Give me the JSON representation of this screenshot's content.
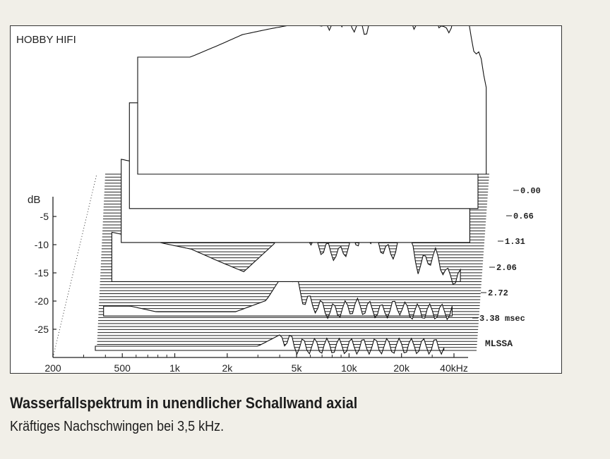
{
  "chart_data": {
    "type": "waterfall",
    "title": "HOBBY HIFI",
    "analyzer_label": "MLSSA",
    "ylabel": "dB",
    "y_ticks": [
      "-5",
      "-10",
      "-15",
      "-20",
      "-25"
    ],
    "ylim": [
      -28,
      3
    ],
    "x_scale": "log",
    "xlim": [
      200,
      40000
    ],
    "x_ticks": [
      {
        "label": "200",
        "value": 200
      },
      {
        "label": "500",
        "value": 500
      },
      {
        "label": "1k",
        "value": 1000
      },
      {
        "label": "2k",
        "value": 2000
      },
      {
        "label": "5k",
        "value": 5000
      },
      {
        "label": "10k",
        "value": 10000
      },
      {
        "label": "20k",
        "value": 20000
      },
      {
        "label": "40kHz",
        "value": 40000
      }
    ],
    "time_labels": [
      "0.00",
      "0.66",
      "1.31",
      "2.06",
      "2.72",
      "3.38 msec"
    ],
    "time_values_ms": [
      0.0,
      0.66,
      1.31,
      2.06,
      2.72,
      3.38
    ],
    "series": [
      {
        "time_ms": 0.0,
        "x": [
          350,
          500,
          700,
          1000,
          1400,
          2000,
          3000,
          4000,
          5000,
          7000,
          10000,
          14000,
          17000,
          20000,
          25000,
          30000,
          35000
        ],
        "y": [
          -8,
          -8,
          -8,
          -6,
          -4,
          -3,
          -2,
          -2.5,
          -1,
          -3,
          1,
          -2,
          2,
          -4,
          1,
          -6,
          -12
        ]
      },
      {
        "time_ms": 0.66,
        "x": [
          350,
          500,
          700,
          1000,
          1400,
          2000,
          3000,
          4000,
          5000,
          7000,
          10000,
          14000,
          17000,
          20000,
          25000,
          30000,
          35000
        ],
        "y": [
          -10,
          -10,
          -11,
          -10,
          -8,
          -7,
          -6,
          -7,
          -5,
          -7,
          -2,
          -6,
          -1,
          -8,
          -3,
          -9,
          -15
        ]
      },
      {
        "time_ms": 1.31,
        "x": [
          350,
          500,
          700,
          1000,
          1400,
          2000,
          3000,
          4000,
          5000,
          7000,
          10000,
          14000,
          17000,
          20000,
          25000,
          30000,
          35000
        ],
        "y": [
          -14,
          -15,
          -16,
          -17,
          -16,
          -18,
          -14,
          -12,
          -13,
          -14,
          -10,
          -15,
          -9,
          -16,
          -11,
          -18,
          -22
        ]
      },
      {
        "time_ms": 2.06,
        "x": [
          350,
          500,
          700,
          1000,
          1400,
          2000,
          3000,
          4000,
          5000,
          7000,
          10000,
          14000,
          17000,
          20000,
          25000,
          30000,
          35000
        ],
        "y": [
          -20,
          -21,
          -22,
          -23,
          -25,
          -27,
          -22,
          -16,
          -22,
          -24,
          -20,
          -24,
          -20,
          -26,
          -24,
          -28,
          -28
        ]
      },
      {
        "time_ms": 2.72,
        "x": [
          350,
          500,
          700,
          1000,
          1400,
          2000,
          3000,
          4000,
          5000,
          7000,
          10000,
          14000,
          17000,
          20000,
          25000,
          30000,
          35000
        ],
        "y": [
          -27,
          -27,
          -28,
          -28,
          -28,
          -28,
          -26,
          -20,
          -26,
          -28,
          -27,
          -28,
          -27,
          -28,
          -28,
          -28,
          -28
        ]
      },
      {
        "time_ms": 3.38,
        "x": [
          350,
          500,
          700,
          1000,
          1400,
          2000,
          3000,
          4000,
          5000,
          7000,
          10000,
          14000,
          17000,
          20000,
          25000,
          30000,
          35000
        ],
        "y": [
          -28,
          -28,
          -28,
          -28,
          -28,
          -28,
          -28,
          -26,
          -28,
          -28,
          -28,
          -28,
          -28,
          -28,
          -28,
          -28,
          -28
        ]
      }
    ]
  },
  "caption": {
    "title": "Wasserfallspektrum in unendlicher Schallwand axial",
    "subtitle": "Kräftiges Nachschwingen bei 3,5 kHz."
  }
}
